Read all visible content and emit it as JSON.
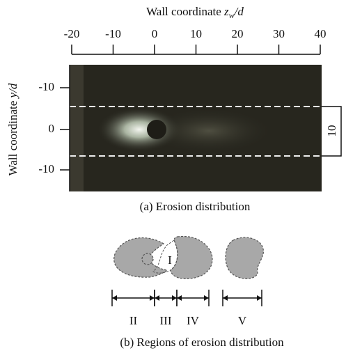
{
  "figure_a": {
    "x_axis_label": {
      "text": "Wall coordinate ",
      "var": "z",
      "sub": "w",
      "rest": "/d"
    },
    "x_ticks": [
      "-20",
      "-10",
      "0",
      "10",
      "20",
      "30",
      "40"
    ],
    "y_axis_label": {
      "text": "Wall coordinate ",
      "var": "y",
      "rest": "/d"
    },
    "y_ticks": [
      "-10",
      "0",
      "-10"
    ],
    "scale_label": "10",
    "caption": "(a) Erosion distribution"
  },
  "figure_b": {
    "region_inner": "I",
    "regions": [
      "II",
      "III",
      "IV",
      "V"
    ],
    "caption": "(b) Regions of erosion distribution"
  }
}
